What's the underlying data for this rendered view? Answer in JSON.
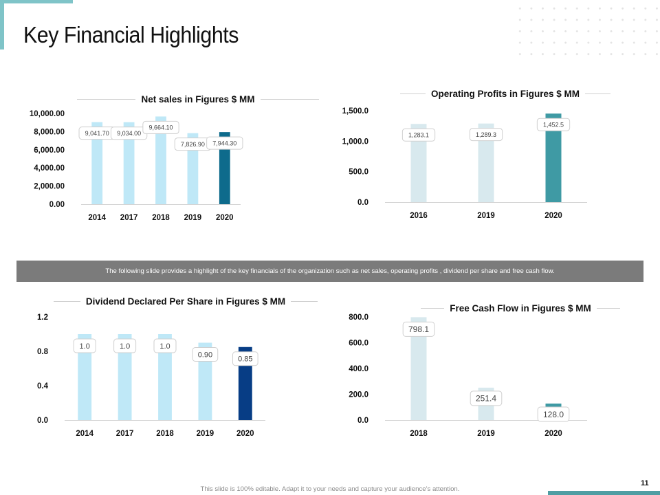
{
  "page": {
    "title": "Key Financial Highlights",
    "banner": "The following slide provides a highlight of the key financials  of the organization such as net sales, operating profits , dividend per share and free cash flow.",
    "footer_note": "This slide is 100% editable. Adapt it to your needs and capture your audience’s attention.",
    "page_number": "11"
  },
  "chart_data": [
    {
      "type": "bar",
      "title": "Net sales in Figures $ MM",
      "categories": [
        "2014",
        "2017",
        "2018",
        "2019",
        "2020"
      ],
      "values": [
        9041.7,
        9034.0,
        9664.1,
        7826.9,
        7944.3
      ],
      "value_labels": [
        "9,041.70",
        "9,034.00",
        "9,664.10",
        "7,826.90",
        "7,944.30"
      ],
      "ylim": [
        0,
        10000
      ],
      "yticks": [
        "0.00",
        "2,000.00",
        "4,000.00",
        "6,000.00",
        "8,000.00",
        "10,000.00"
      ],
      "bar_colors": [
        "#bfe8f7",
        "#bfe8f7",
        "#bfe8f7",
        "#bfe8f7",
        "#0e6b8c"
      ],
      "grid": false
    },
    {
      "type": "bar",
      "title": "Operating Profits in Figures $ MM",
      "categories": [
        "2016",
        "2019",
        "2020"
      ],
      "values": [
        1283.1,
        1289.3,
        1452.5
      ],
      "value_labels": [
        "1,283.1",
        "1,289.3",
        "1,452.5"
      ],
      "ylim": [
        0,
        1500
      ],
      "yticks": [
        "0.0",
        "500.0",
        "1,000.0",
        "1,500.0"
      ],
      "bar_colors": [
        "#d8e9ee",
        "#d8e9ee",
        "#3f9aa4"
      ],
      "grid": false
    },
    {
      "type": "bar",
      "title": "Dividend Declared Per Share in Figures $ MM",
      "categories": [
        "2014",
        "2017",
        "2018",
        "2019",
        "2020"
      ],
      "values": [
        1.0,
        1.0,
        1.0,
        0.9,
        0.85
      ],
      "value_labels": [
        "1.0",
        "1.0",
        "1.0",
        "0.90",
        "0.85"
      ],
      "ylim": [
        0,
        1.2
      ],
      "yticks": [
        "0.0",
        "0.4",
        "0.8",
        "1.2"
      ],
      "bar_colors": [
        "#bfe8f7",
        "#bfe8f7",
        "#bfe8f7",
        "#bfe8f7",
        "#073d85"
      ],
      "grid": false
    },
    {
      "type": "bar",
      "title": "Free Cash Flow in Figures $ MM",
      "categories": [
        "2018",
        "2019",
        "2020"
      ],
      "values": [
        798.1,
        251.4,
        128.0
      ],
      "value_labels": [
        "798.1",
        "251.4",
        "128.0"
      ],
      "ylim": [
        0,
        800
      ],
      "yticks": [
        "0.0",
        "200.0",
        "400.0",
        "600.0",
        "800.0"
      ],
      "bar_colors": [
        "#d8e9ee",
        "#d8e9ee",
        "#3f9aa4"
      ],
      "grid": false
    }
  ]
}
